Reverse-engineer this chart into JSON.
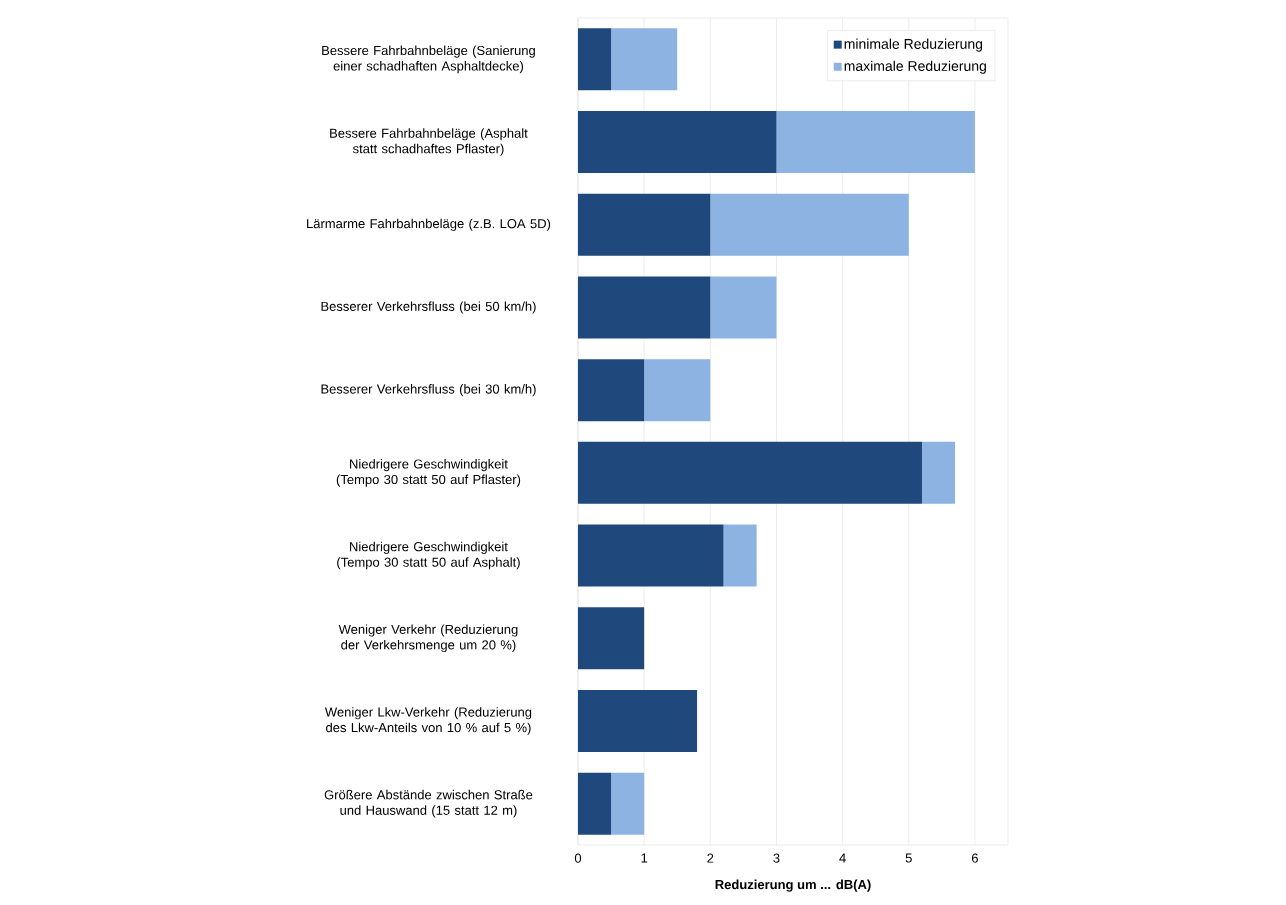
{
  "chart_data": {
    "type": "bar",
    "orientation": "horizontal",
    "stacked": true,
    "xlabel": "Reduzierung um  ... dB(A)",
    "categories": [
      "Bessere Fahrbahnbeläge (Sanierung einer schadhaften Asphaltdecke)",
      "Bessere Fahrbahnbeläge (Asphalt statt schadhaftes Pflaster)",
      "Lärmarme Fahrbahnbeläge (z.B. LOA 5D)",
      "Besserer Verkehrsfluss (bei 50 km/h)",
      "Besserer Verkehrsfluss (bei 30 km/h)",
      "Niedrigere Geschwindigkeit (Tempo 30 statt 50 auf Pflaster)",
      "Niedrigere Geschwindigkeit (Tempo 30 statt 50 auf Asphalt)",
      "Weniger Verkehr (Reduzierung der Verkehrsmenge um 20 %)",
      "Weniger Lkw-Verkehr (Reduzierung des Lkw-Anteils von 10 % auf 5 %)",
      "Größere Abstände zwischen Straße und Hauswand (15 statt 12 m)"
    ],
    "series": [
      {
        "name": "minimale Reduzierung",
        "color": "#1f497d",
        "values": [
          0.5,
          3,
          2,
          2,
          1,
          5.2,
          2.2,
          1,
          1.8,
          0.5
        ]
      },
      {
        "name": "maximale Reduzierung",
        "color": "#8db3e2",
        "values": [
          1,
          3,
          3,
          1,
          1,
          0.5,
          0.5,
          0,
          0,
          0.5
        ]
      }
    ],
    "xlim": [
      0,
      6.5
    ],
    "xticks": [
      0,
      1,
      2,
      3,
      4,
      5,
      6
    ],
    "grid": "x",
    "legend": "top right"
  }
}
